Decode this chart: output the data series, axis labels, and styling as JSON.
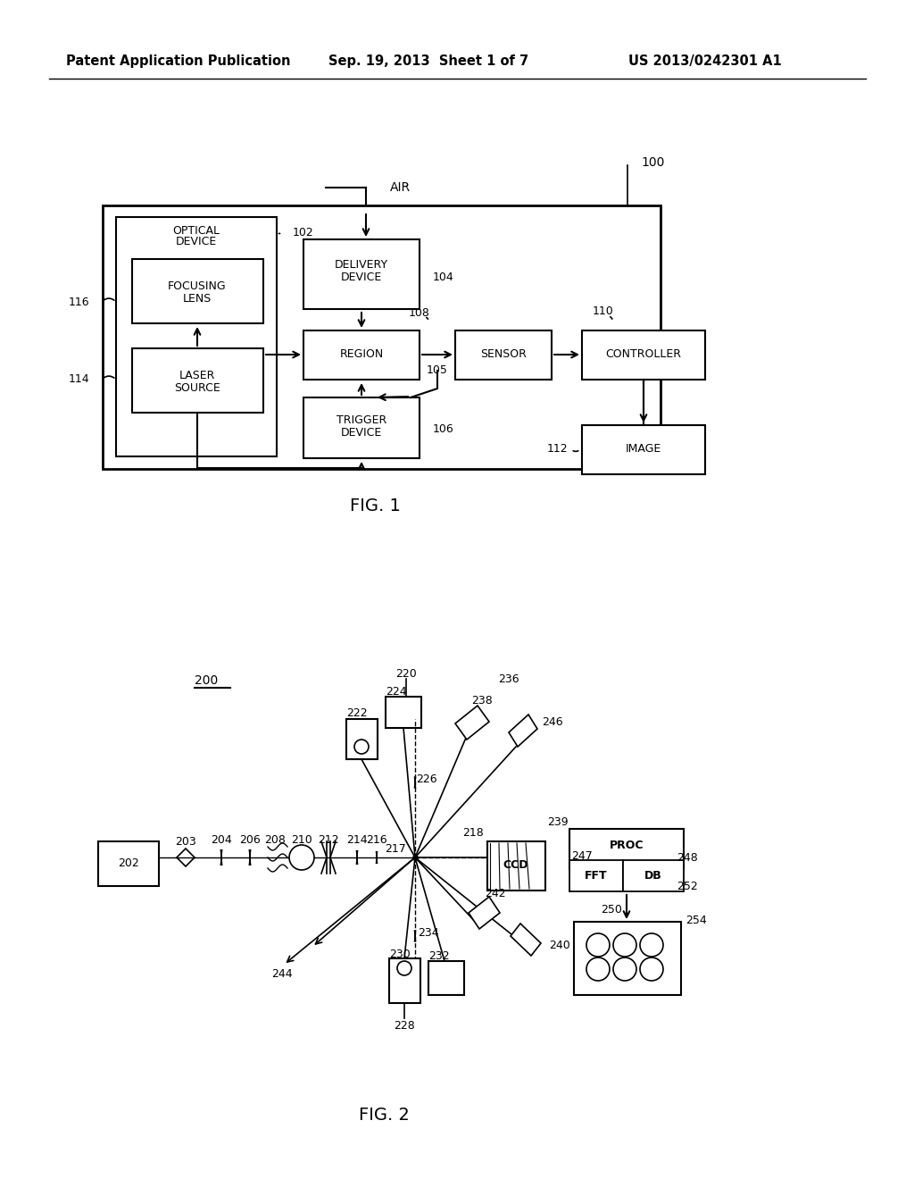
{
  "bg_color": "#ffffff",
  "line_color": "#000000",
  "header_left": "Patent Application Publication",
  "header_mid": "Sep. 19, 2013  Sheet 1 of 7",
  "header_right": "US 2013/0242301 A1"
}
